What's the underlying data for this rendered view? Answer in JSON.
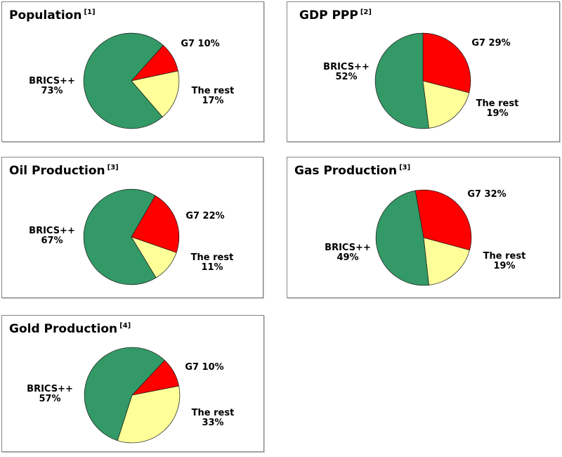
{
  "palette": {
    "brics": "#339966",
    "g7": "#ff0000",
    "rest": "#ffff99",
    "slice_border": "#1a1a1a",
    "panel_border": "#848484",
    "text": "#000000",
    "background": "#ffffff"
  },
  "legend": {
    "BRICS++": "#339966",
    "G7": "#ff0000",
    "The rest": "#ffff99"
  },
  "chart_data": [
    {
      "type": "pie",
      "title": "Population",
      "footnote": "[1]",
      "categories": [
        "G7",
        "The rest",
        "BRICS++"
      ],
      "values": [
        10,
        17,
        73
      ],
      "colors": [
        "#ff0000",
        "#ffff99",
        "#339966"
      ],
      "start_angle_deg": 42,
      "labels": {
        "g7": "G7 10%",
        "brics": [
          "BRICS++",
          "73%"
        ],
        "rest": [
          "The rest",
          "17%"
        ]
      }
    },
    {
      "type": "pie",
      "title": "GDP PPP",
      "footnote": "[2]",
      "categories": [
        "G7",
        "The rest",
        "BRICS++"
      ],
      "values": [
        29,
        19,
        52
      ],
      "colors": [
        "#ff0000",
        "#ffff99",
        "#339966"
      ],
      "start_angle_deg": 0,
      "labels": {
        "g7": "G7 29%",
        "brics": [
          "BRICS++",
          "52%"
        ],
        "rest": [
          "The rest",
          "19%"
        ]
      }
    },
    {
      "type": "pie",
      "title": "Oil Production",
      "footnote": "[3]",
      "categories": [
        "G7",
        "The rest",
        "BRICS++"
      ],
      "values": [
        22,
        11,
        67
      ],
      "colors": [
        "#ff0000",
        "#ffff99",
        "#339966"
      ],
      "start_angle_deg": 30,
      "labels": {
        "g7": "G7 22%",
        "brics": [
          "BRICS++",
          "67%"
        ],
        "rest": [
          "The rest",
          "11%"
        ]
      }
    },
    {
      "type": "pie",
      "title": "Gas Production",
      "footnote": "[3]",
      "categories": [
        "G7",
        "The rest",
        "BRICS++"
      ],
      "values": [
        32,
        19,
        49
      ],
      "colors": [
        "#ff0000",
        "#ffff99",
        "#339966"
      ],
      "start_angle_deg": -10,
      "labels": {
        "g7": "G7 32%",
        "brics": [
          "BRICS++",
          "49%"
        ],
        "rest": [
          "The rest",
          "19%"
        ]
      }
    },
    {
      "type": "pie",
      "title": "Gold Production",
      "footnote": "[4]",
      "categories": [
        "G7",
        "The rest",
        "BRICS++"
      ],
      "values": [
        10,
        33,
        57
      ],
      "colors": [
        "#ff0000",
        "#ffff99",
        "#339966"
      ],
      "start_angle_deg": 43,
      "labels": {
        "g7": "G7 10%",
        "brics": [
          "BRICS++",
          "57%"
        ],
        "rest": [
          "The rest",
          "33%"
        ]
      }
    }
  ]
}
